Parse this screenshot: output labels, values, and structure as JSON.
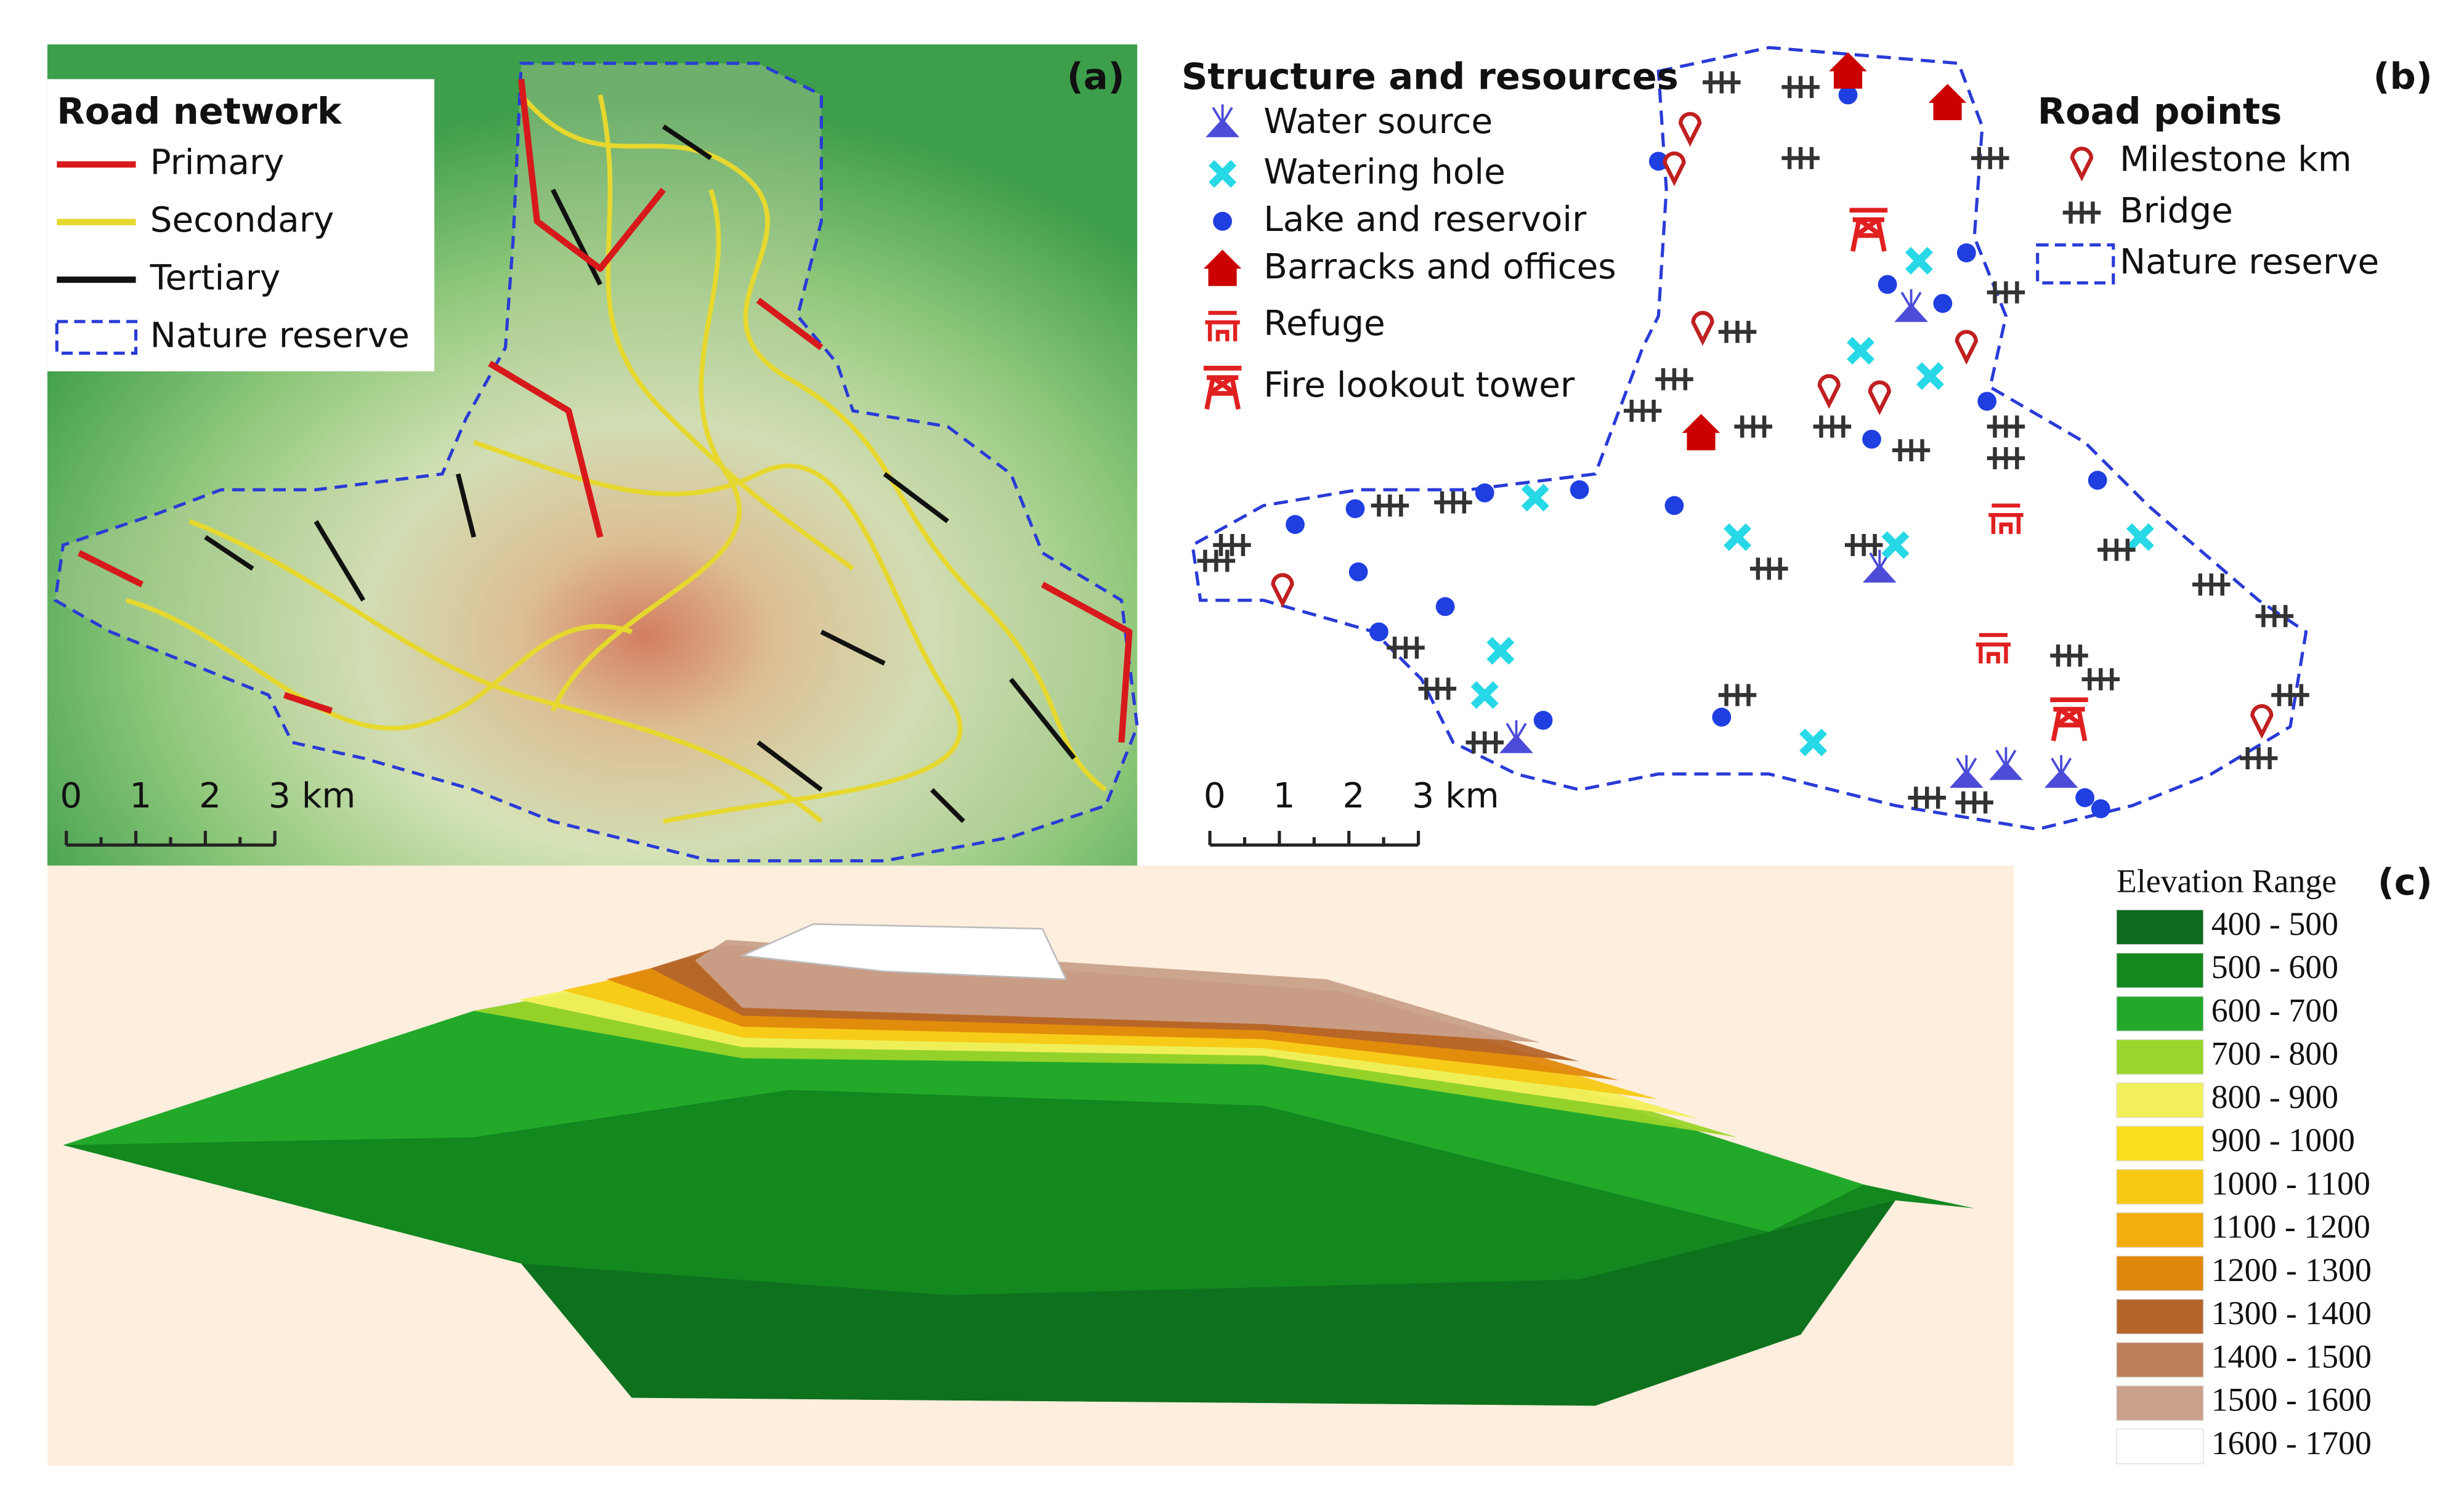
{
  "panel_a": {
    "label": "(a)",
    "legend": {
      "title": "Road network",
      "items": [
        {
          "name": "Primary",
          "color": "#d7191c"
        },
        {
          "name": "Secondary",
          "color": "#e6d82e"
        },
        {
          "name": "Tertiary",
          "color": "#111111"
        },
        {
          "name": "Nature reserve",
          "color": "#2a3bd6"
        }
      ]
    },
    "scale_bar": [
      "0",
      "1",
      "2",
      "3 km"
    ]
  },
  "panel_b": {
    "label": "(b)",
    "legend_left": {
      "title": "Structure and resources",
      "items": [
        "Water source",
        "Watering hole",
        "Lake and reservoir",
        "Barracks and offices",
        "Refuge",
        "Fire lookout tower"
      ]
    },
    "legend_right": {
      "title": "Road points",
      "items": [
        "Milestone km",
        "Bridge",
        "Nature reserve"
      ]
    },
    "scale_bar": [
      "0",
      "1",
      "2",
      "3 km"
    ]
  },
  "panel_c": {
    "label": "(c)",
    "legend": {
      "title": "Elevation Range",
      "items": [
        {
          "name": "400 - 500",
          "color": "#0e6b1e"
        },
        {
          "name": "500 - 600",
          "color": "#12881f"
        },
        {
          "name": "600 - 700",
          "color": "#22a92a"
        },
        {
          "name": "700 - 800",
          "color": "#9bd42a"
        },
        {
          "name": "800 - 900",
          "color": "#f2f05a"
        },
        {
          "name": "900 - 1000",
          "color": "#f8de1c"
        },
        {
          "name": "1000 - 1100",
          "color": "#f7c915"
        },
        {
          "name": "1100 - 1200",
          "color": "#f3ad0c"
        },
        {
          "name": "1200 - 1300",
          "color": "#e0880c"
        },
        {
          "name": "1300 - 1400",
          "color": "#b5652a"
        },
        {
          "name": "1400 - 1500",
          "color": "#bd7f5a"
        },
        {
          "name": "1500 - 1600",
          "color": "#c9a08a"
        },
        {
          "name": "1600 - 1700",
          "color": "#ffffff"
        }
      ]
    }
  }
}
